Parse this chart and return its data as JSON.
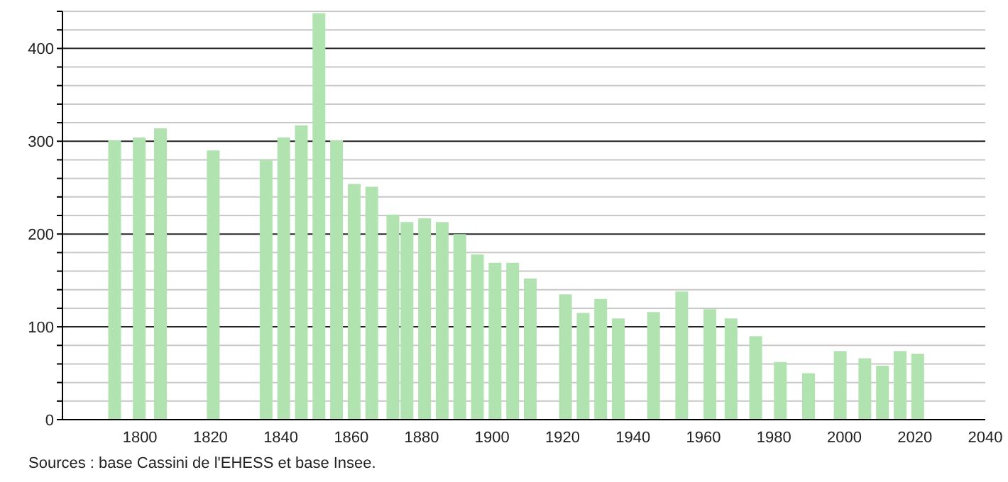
{
  "chart_data": {
    "type": "bar",
    "x": [
      1793,
      1800,
      1806,
      1821,
      1836,
      1841,
      1846,
      1851,
      1856,
      1861,
      1866,
      1872,
      1876,
      1881,
      1886,
      1891,
      1896,
      1901,
      1906,
      1911,
      1921,
      1926,
      1931,
      1936,
      1946,
      1954,
      1962,
      1968,
      1975,
      1982,
      1990,
      1999,
      2006,
      2011,
      2016,
      2021
    ],
    "values": [
      301,
      304,
      314,
      290,
      280,
      304,
      317,
      438,
      301,
      254,
      251,
      221,
      213,
      217,
      213,
      200,
      178,
      169,
      169,
      152,
      135,
      115,
      130,
      109,
      116,
      138,
      119,
      109,
      90,
      62,
      50,
      74,
      66,
      58,
      74,
      71
    ],
    "color": "#b0e3b0",
    "xlim": [
      1778,
      2040
    ],
    "xticks": [
      1800,
      1820,
      1840,
      1860,
      1880,
      1900,
      1920,
      1940,
      1960,
      1980,
      2000,
      2020,
      2040
    ],
    "ylim": [
      0,
      440
    ],
    "yticks": [
      0,
      {
        "value": 20,
        "label": null
      },
      {
        "value": 40,
        "label": null
      },
      {
        "value": 60,
        "label": null
      },
      {
        "value": 80,
        "label": null
      },
      100,
      {
        "value": 120,
        "label": null
      },
      {
        "value": 140,
        "label": null
      },
      {
        "value": 160,
        "label": null
      },
      {
        "value": 180,
        "label": null
      },
      200,
      {
        "value": 220,
        "label": null
      },
      {
        "value": 240,
        "label": null
      },
      {
        "value": 260,
        "label": null
      },
      {
        "value": 280,
        "label": null
      },
      300,
      {
        "value": 320,
        "label": null
      },
      {
        "value": 340,
        "label": null
      },
      {
        "value": 360,
        "label": null
      },
      {
        "value": 380,
        "label": null
      },
      400,
      {
        "value": 420,
        "label": null
      },
      {
        "value": 440,
        "label": null
      }
    ],
    "grid": "y",
    "annotations": [
      "Sources : base Cassini de l'EHESS et base Insee."
    ]
  }
}
